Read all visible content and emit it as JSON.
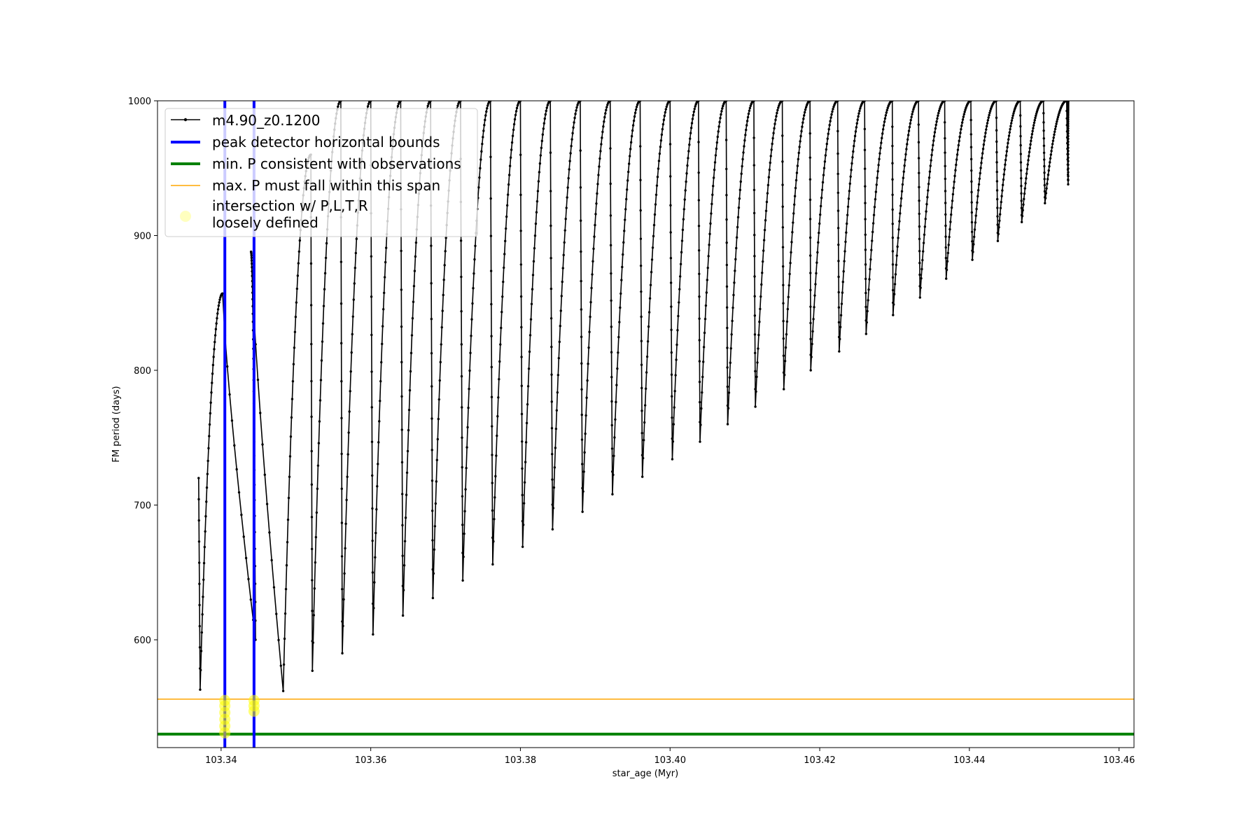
{
  "chart_data": {
    "type": "line",
    "title": "",
    "xlabel": "star_age (Myr)",
    "ylabel": "FM period (days)",
    "xlim": [
      103.3315,
      103.462
    ],
    "ylim": [
      520,
      1000
    ],
    "xticks": [
      103.34,
      103.36,
      103.38,
      103.4,
      103.42,
      103.44,
      103.46
    ],
    "xtick_labels": [
      "103.34",
      "103.36",
      "103.38",
      "103.40",
      "103.42",
      "103.44",
      "103.46"
    ],
    "yticks": [
      600,
      700,
      800,
      900,
      1000
    ],
    "ytick_labels": [
      "600",
      "700",
      "800",
      "900",
      "1000"
    ],
    "grid": false,
    "legend_position": "upper-left",
    "series": [
      {
        "name": "m4.90_z0.1200",
        "style": "line-with-point-markers",
        "color": "#000000",
        "start": {
          "x": 103.337,
          "y": 720
        },
        "cycles": [
          {
            "min_x": 103.3372,
            "min_y": 563,
            "peak_x": 103.3402,
            "peak_y": 857
          },
          {
            "min_x": 103.3446,
            "min_y": 600,
            "peak_x": 103.344,
            "peak_y": 888
          },
          {
            "min_x": 103.3483,
            "min_y": 562,
            "peak_x": 103.352,
            "peak_y": 960
          },
          {
            "min_x": 103.3522,
            "min_y": 577,
            "peak_x": 103.356,
            "peak_y": 1000
          },
          {
            "min_x": 103.3562,
            "min_y": 590,
            "peak_x": 103.36,
            "peak_y": 1000
          },
          {
            "min_x": 103.3603,
            "min_y": 604,
            "peak_x": 103.364,
            "peak_y": 1000
          },
          {
            "min_x": 103.3643,
            "min_y": 618,
            "peak_x": 103.368,
            "peak_y": 1000
          },
          {
            "min_x": 103.3683,
            "min_y": 631,
            "peak_x": 103.372,
            "peak_y": 1000
          },
          {
            "min_x": 103.3723,
            "min_y": 644,
            "peak_x": 103.376,
            "peak_y": 1000
          },
          {
            "min_x": 103.3763,
            "min_y": 656,
            "peak_x": 103.38,
            "peak_y": 1000
          },
          {
            "min_x": 103.3803,
            "min_y": 669,
            "peak_x": 103.384,
            "peak_y": 1000
          },
          {
            "min_x": 103.3843,
            "min_y": 682,
            "peak_x": 103.388,
            "peak_y": 1000
          },
          {
            "min_x": 103.3883,
            "min_y": 695,
            "peak_x": 103.392,
            "peak_y": 1000
          },
          {
            "min_x": 103.3923,
            "min_y": 708,
            "peak_x": 103.396,
            "peak_y": 1000
          },
          {
            "min_x": 103.3963,
            "min_y": 721,
            "peak_x": 103.4,
            "peak_y": 1000
          },
          {
            "min_x": 103.4003,
            "min_y": 734,
            "peak_x": 103.4038,
            "peak_y": 1000
          },
          {
            "min_x": 103.404,
            "min_y": 747,
            "peak_x": 103.4075,
            "peak_y": 1000
          },
          {
            "min_x": 103.4077,
            "min_y": 760,
            "peak_x": 103.4112,
            "peak_y": 1000
          },
          {
            "min_x": 103.4114,
            "min_y": 773,
            "peak_x": 103.415,
            "peak_y": 1000
          },
          {
            "min_x": 103.4152,
            "min_y": 786,
            "peak_x": 103.4187,
            "peak_y": 1000
          },
          {
            "min_x": 103.4188,
            "min_y": 800,
            "peak_x": 103.4224,
            "peak_y": 1000
          },
          {
            "min_x": 103.4226,
            "min_y": 814,
            "peak_x": 103.426,
            "peak_y": 1000
          },
          {
            "min_x": 103.4262,
            "min_y": 827,
            "peak_x": 103.4297,
            "peak_y": 1000
          },
          {
            "min_x": 103.4298,
            "min_y": 841,
            "peak_x": 103.4332,
            "peak_y": 1000
          },
          {
            "min_x": 103.4334,
            "min_y": 854,
            "peak_x": 103.4367,
            "peak_y": 1000
          },
          {
            "min_x": 103.4369,
            "min_y": 868,
            "peak_x": 103.4402,
            "peak_y": 1000
          },
          {
            "min_x": 103.4404,
            "min_y": 882,
            "peak_x": 103.4436,
            "peak_y": 1000
          },
          {
            "min_x": 103.4438,
            "min_y": 896,
            "peak_x": 103.4468,
            "peak_y": 1000
          },
          {
            "min_x": 103.447,
            "min_y": 910,
            "peak_x": 103.4499,
            "peak_y": 1000
          },
          {
            "min_x": 103.4501,
            "min_y": 924,
            "peak_x": 103.453,
            "peak_y": 1000
          },
          {
            "min_x": 103.4532,
            "min_y": 938,
            "peak_x": 103.4532,
            "peak_y": 1000
          }
        ]
      },
      {
        "name": "peak detector horizontal bounds",
        "style": "vertical-line",
        "color": "#0000ff",
        "x_values": [
          103.3405,
          103.3444
        ]
      },
      {
        "name": "min. P consistent with observations",
        "style": "horizontal-line",
        "color": "#008000",
        "y": 530
      },
      {
        "name": "max. P must fall within this span",
        "style": "horizontal-line",
        "color": "#ffa500",
        "y": 556
      },
      {
        "name": "intersection w/ P,L,T,R\nloosely defined",
        "style": "scatter",
        "color": "#ffff00",
        "points": [
          {
            "x": 103.3405,
            "y": 531
          },
          {
            "x": 103.3405,
            "y": 536
          },
          {
            "x": 103.3405,
            "y": 541
          },
          {
            "x": 103.3405,
            "y": 546
          },
          {
            "x": 103.3405,
            "y": 551
          },
          {
            "x": 103.3405,
            "y": 555
          },
          {
            "x": 103.3444,
            "y": 547
          },
          {
            "x": 103.3444,
            "y": 551
          },
          {
            "x": 103.3444,
            "y": 555
          }
        ]
      }
    ]
  }
}
